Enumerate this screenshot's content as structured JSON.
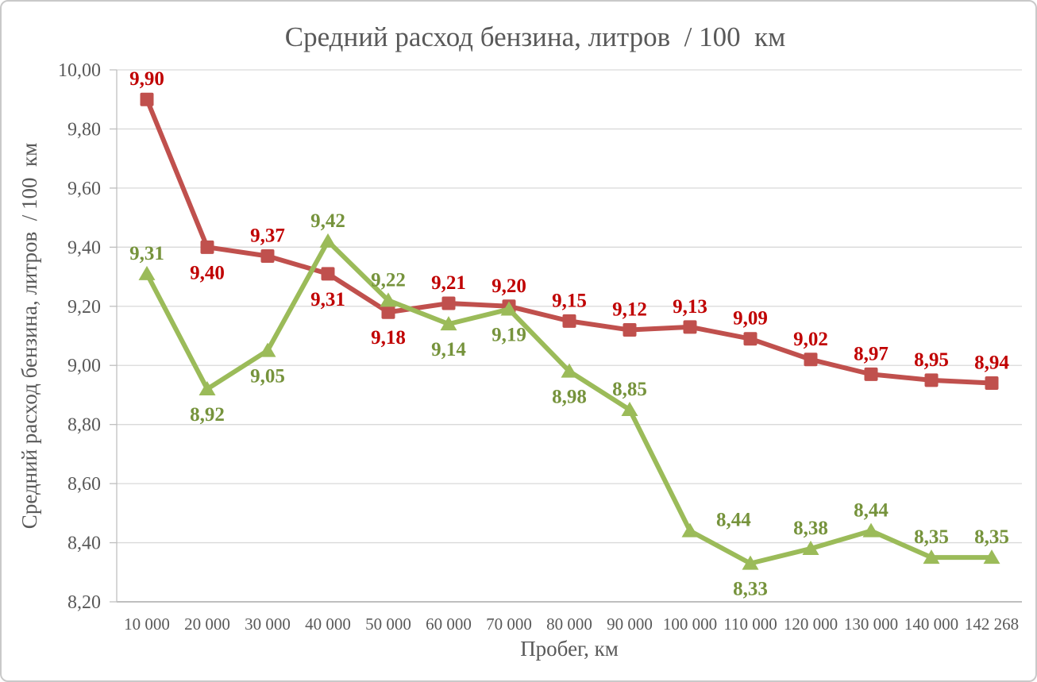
{
  "chart_data": {
    "type": "line",
    "title": "Средний расход бензина, литров  / 100  км",
    "xlabel": "Пробег, км",
    "ylabel": "Средний расход бензина, литров  / 100  км",
    "categories": [
      "10 000",
      "20 000",
      "30 000",
      "40 000",
      "50 000",
      "60 000",
      "70 000",
      "80 000",
      "90 000",
      "100 000",
      "110 000",
      "120 000",
      "130 000",
      "140 000",
      "142 268"
    ],
    "y_tick_labels": [
      "10,00",
      "9,80",
      "9,60",
      "9,40",
      "9,20",
      "9,00",
      "8,80",
      "8,60",
      "8,40",
      "8,20"
    ],
    "y_tick_values": [
      10.0,
      9.8,
      9.6,
      9.4,
      9.2,
      9.0,
      8.8,
      8.6,
      8.4,
      8.2
    ],
    "ylim": [
      8.2,
      10.0
    ],
    "grid": true,
    "legend": "none",
    "colors": {
      "text": "#595959",
      "gridline": "#D9D9D9",
      "axis_line": "#BFBFBF"
    },
    "series": [
      {
        "marker": "square",
        "line_color": "#C0504D",
        "label_color": "#C00000",
        "values": [
          9.9,
          9.4,
          9.37,
          9.31,
          9.18,
          9.21,
          9.2,
          9.15,
          9.12,
          9.13,
          9.09,
          9.02,
          8.97,
          8.95,
          8.94
        ],
        "labels": [
          "9,90",
          "9,40",
          "9,37",
          "9,31",
          "9,18",
          "9,21",
          "9,20",
          "9,15",
          "9,12",
          "9,13",
          "9,09",
          "9,02",
          "8,97",
          "8,95",
          "8,94"
        ],
        "label_positions": [
          "above",
          "below",
          "above",
          "below",
          "below",
          "above",
          "above",
          "above",
          "above",
          "above",
          "above",
          "above",
          "above",
          "above",
          "above"
        ]
      },
      {
        "marker": "triangle",
        "line_color": "#9BBB59",
        "label_color": "#76933C",
        "values": [
          9.31,
          8.92,
          9.05,
          9.42,
          9.22,
          9.14,
          9.19,
          8.98,
          8.85,
          8.44,
          8.33,
          8.38,
          8.44,
          8.35,
          8.35
        ],
        "labels": [
          "9,31",
          "8,92",
          "9,05",
          "9,42",
          "9,22",
          "9,14",
          "9,19",
          "8,98",
          "8,85",
          "8,44",
          "8,33",
          "8,38",
          "8,44",
          "8,35",
          "8,35"
        ],
        "label_positions": [
          "above",
          "below",
          "below",
          "above",
          "above",
          "below",
          "below",
          "below",
          "above",
          "right",
          "below",
          "above",
          "above",
          "above",
          "above"
        ]
      }
    ]
  }
}
